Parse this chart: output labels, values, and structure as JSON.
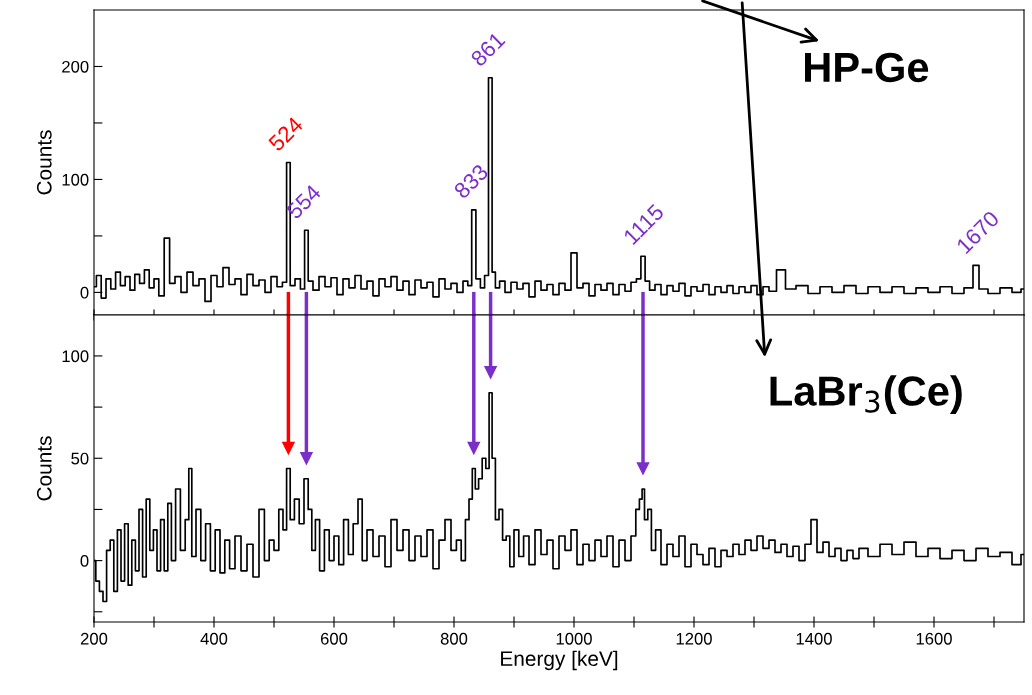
{
  "chart_data": [
    {
      "type": "step",
      "ylabel": "Counts",
      "annotations": [
        "HP-Ge",
        {
          "text": "524",
          "x": 524,
          "y": 115
        },
        {
          "text": "554",
          "x": 554,
          "y": 55
        },
        {
          "text": "833",
          "x": 833,
          "y": 73
        },
        {
          "text": "861",
          "x": 861,
          "y": 190
        },
        {
          "text": "1115",
          "x": 1115,
          "y": 32
        },
        {
          "text": "1670",
          "x": 1670,
          "y": 24
        }
      ],
      "tick_labels": "y",
      "grid": false,
      "xlim": [
        200,
        1750
      ],
      "xticks": [
        200,
        {
          "value": 300,
          "label": null
        },
        400,
        {
          "value": 500,
          "label": null
        },
        600,
        {
          "value": 700,
          "label": null
        },
        800,
        {
          "value": 900,
          "label": null
        },
        1000,
        {
          "value": 1100,
          "label": null
        },
        1200,
        {
          "value": 1300,
          "label": null
        },
        1400,
        {
          "value": 1500,
          "label": null
        },
        1600,
        {
          "value": 1700,
          "label": null
        }
      ],
      "ylim": [
        -20,
        250
      ],
      "yticks": [
        0,
        {
          "value": 50,
          "label": null
        },
        100,
        {
          "value": 150,
          "label": null
        },
        200
      ],
      "series": [
        {
          "color": "#000000",
          "x": [
            200,
            208,
            216,
            224,
            232,
            240,
            248,
            256,
            264,
            272,
            280,
            288,
            296,
            304,
            312,
            322,
            330,
            340,
            350,
            360,
            370,
            380,
            390,
            400,
            410,
            420,
            430,
            440,
            450,
            460,
            470,
            480,
            490,
            500,
            510,
            518,
            524,
            530,
            540,
            548,
            554,
            560,
            570,
            580,
            590,
            600,
            610,
            620,
            630,
            640,
            650,
            660,
            670,
            680,
            690,
            700,
            710,
            720,
            730,
            740,
            750,
            760,
            770,
            780,
            790,
            800,
            810,
            820,
            826,
            833,
            840,
            848,
            854,
            861,
            866,
            872,
            880,
            890,
            900,
            910,
            920,
            930,
            940,
            950,
            960,
            970,
            980,
            990,
            1000,
            1010,
            1020,
            1030,
            1040,
            1050,
            1060,
            1070,
            1080,
            1090,
            1100,
            1108,
            1115,
            1122,
            1130,
            1140,
            1150,
            1160,
            1170,
            1180,
            1190,
            1200,
            1210,
            1220,
            1230,
            1240,
            1250,
            1260,
            1270,
            1280,
            1290,
            1300,
            1310,
            1320,
            1330,
            1345,
            1360,
            1380,
            1400,
            1420,
            1440,
            1460,
            1480,
            1500,
            1520,
            1540,
            1560,
            1580,
            1600,
            1620,
            1640,
            1660,
            1670,
            1680,
            1700,
            1720,
            1740,
            1750
          ],
          "values": [
            5,
            15,
            -5,
            12,
            3,
            18,
            6,
            14,
            2,
            16,
            8,
            20,
            4,
            12,
            -3,
            48,
            8,
            14,
            0,
            18,
            6,
            12,
            -8,
            15,
            5,
            22,
            7,
            12,
            -2,
            16,
            6,
            11,
            0,
            14,
            5,
            9,
            115,
            6,
            12,
            3,
            55,
            10,
            2,
            14,
            5,
            13,
            -2,
            12,
            4,
            15,
            3,
            10,
            -3,
            12,
            5,
            14,
            2,
            10,
            -2,
            11,
            4,
            9,
            -4,
            12,
            3,
            8,
            0,
            10,
            6,
            73,
            12,
            4,
            15,
            190,
            18,
            4,
            10,
            0,
            9,
            3,
            8,
            -4,
            10,
            2,
            7,
            -2,
            8,
            2,
            35,
            4,
            8,
            -3,
            7,
            2,
            8,
            -2,
            7,
            1,
            9,
            12,
            32,
            10,
            2,
            7,
            -2,
            6,
            1,
            8,
            -3,
            5,
            1,
            7,
            -2,
            5,
            0,
            6,
            -1,
            5,
            0,
            6,
            -2,
            5,
            1,
            20,
            3,
            6,
            -1,
            5,
            0,
            6,
            -1,
            5,
            0,
            5,
            -1,
            4,
            0,
            5,
            -1,
            4,
            24,
            3,
            -1,
            4,
            0,
            3
          ]
        }
      ]
    },
    {
      "type": "step",
      "ylabel": "Counts",
      "xlabel": "Energy [keV]",
      "annotations": [
        "LaBr$_{3}$(Ce)"
      ],
      "grid": false,
      "xlim": [
        200,
        1750
      ],
      "xticks": [
        200,
        {
          "value": 300,
          "label": null
        },
        400,
        {
          "value": 500,
          "label": null
        },
        600,
        {
          "value": 700,
          "label": null
        },
        800,
        {
          "value": 900,
          "label": null
        },
        1000,
        {
          "value": 1100,
          "label": null
        },
        1200,
        {
          "value": 1300,
          "label": null
        },
        1400,
        {
          "value": 1500,
          "label": null
        },
        1600,
        {
          "value": 1700,
          "label": null
        }
      ],
      "ylim": [
        -30,
        120
      ],
      "yticks": [
        {
          "value": -25,
          "label": null
        },
        0,
        {
          "value": 25,
          "label": null
        },
        50,
        {
          "value": 75,
          "label": null
        },
        100
      ],
      "ref_lines": [
        {
          "axis": "x",
          "value": 524,
          "color": "#ff0000"
        },
        {
          "axis": "x",
          "value": 554,
          "color": "#7b2fc9"
        },
        {
          "axis": "x",
          "value": 833,
          "color": "#7b2fc9"
        },
        {
          "axis": "x",
          "value": 861,
          "color": "#7b2fc9"
        },
        {
          "axis": "x",
          "value": 1115,
          "color": "#7b2fc9"
        }
      ],
      "series": [
        {
          "color": "#000000",
          "x": [
            200,
            206,
            212,
            218,
            224,
            230,
            236,
            242,
            248,
            254,
            260,
            266,
            272,
            278,
            284,
            290,
            296,
            302,
            308,
            314,
            320,
            326,
            332,
            340,
            348,
            356,
            360,
            366,
            374,
            382,
            390,
            398,
            406,
            414,
            422,
            430,
            440,
            450,
            460,
            470,
            480,
            488,
            496,
            504,
            512,
            518,
            524,
            530,
            538,
            546,
            554,
            560,
            566,
            572,
            580,
            588,
            596,
            604,
            612,
            620,
            628,
            636,
            644,
            650,
            660,
            670,
            680,
            690,
            700,
            710,
            720,
            730,
            740,
            750,
            760,
            770,
            780,
            790,
            800,
            808,
            816,
            822,
            828,
            833,
            838,
            844,
            850,
            856,
            861,
            866,
            872,
            878,
            884,
            890,
            896,
            904,
            912,
            920,
            930,
            940,
            950,
            960,
            970,
            980,
            990,
            1000,
            1010,
            1020,
            1030,
            1040,
            1050,
            1060,
            1070,
            1080,
            1090,
            1100,
            1106,
            1112,
            1115,
            1120,
            1126,
            1132,
            1140,
            1150,
            1160,
            1170,
            1180,
            1190,
            1200,
            1210,
            1220,
            1230,
            1240,
            1250,
            1260,
            1270,
            1280,
            1290,
            1300,
            1310,
            1320,
            1330,
            1340,
            1350,
            1360,
            1370,
            1380,
            1390,
            1400,
            1410,
            1420,
            1430,
            1440,
            1450,
            1460,
            1470,
            1480,
            1500,
            1520,
            1540,
            1560,
            1580,
            1600,
            1620,
            1640,
            1660,
            1680,
            1700,
            1720,
            1740,
            1750
          ],
          "values": [
            0,
            -10,
            -15,
            -20,
            5,
            10,
            -15,
            15,
            -10,
            18,
            -12,
            10,
            -5,
            25,
            -8,
            30,
            5,
            15,
            -5,
            20,
            -5,
            28,
            0,
            35,
            5,
            20,
            45,
            2,
            25,
            0,
            18,
            -5,
            15,
            -6,
            10,
            -4,
            12,
            -5,
            8,
            -8,
            25,
            0,
            10,
            5,
            25,
            15,
            45,
            20,
            30,
            18,
            40,
            25,
            5,
            20,
            -5,
            15,
            0,
            12,
            -2,
            20,
            3,
            18,
            30,
            0,
            15,
            2,
            12,
            -3,
            20,
            5,
            15,
            0,
            12,
            2,
            15,
            -4,
            10,
            20,
            5,
            10,
            0,
            20,
            30,
            45,
            35,
            40,
            50,
            45,
            82,
            50,
            20,
            25,
            10,
            12,
            -3,
            15,
            2,
            12,
            -2,
            15,
            3,
            10,
            -4,
            12,
            5,
            15,
            -2,
            8,
            0,
            10,
            2,
            12,
            -3,
            10,
            0,
            12,
            25,
            30,
            35,
            20,
            25,
            5,
            15,
            -2,
            8,
            2,
            12,
            -3,
            8,
            3,
            -2,
            6,
            -3,
            5,
            2,
            8,
            3,
            10,
            5,
            12,
            6,
            10,
            4,
            8,
            2,
            7,
            0,
            8,
            20,
            4,
            9,
            2,
            6,
            0,
            5,
            1,
            6,
            2,
            8,
            3,
            9,
            2,
            6,
            1,
            5,
            0,
            6,
            2,
            4,
            -2,
            3
          ]
        }
      ]
    }
  ]
}
